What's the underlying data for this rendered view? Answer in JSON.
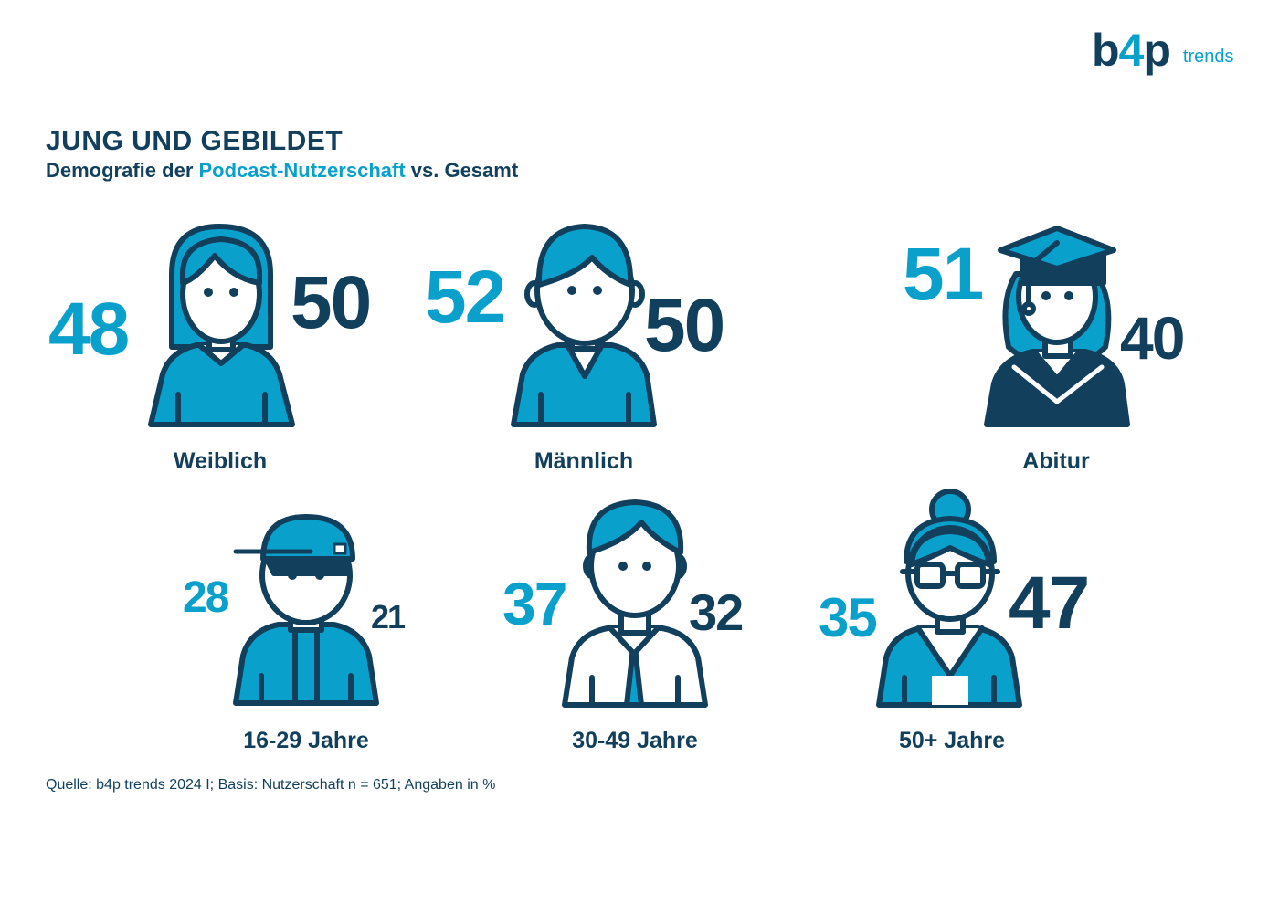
{
  "logo": {
    "brand_b": "b",
    "brand_4": "4",
    "brand_p": "p",
    "sub": "trends"
  },
  "title": "JUNG UND GEBILDET",
  "subtitle": {
    "part1": "Demografie der ",
    "accent": "Podcast-Nutzerschaft",
    "part2": " vs. Gesamt"
  },
  "source": "Quelle: b4p trends 2024 I; Basis: Nutzerschaft n = 651; Angaben in %",
  "colors": {
    "podcast": "#0aa0cc",
    "total": "#113f5c",
    "icon_fill": "#0aa0cc",
    "icon_stroke": "#113f5c"
  },
  "chart_data": {
    "type": "pictogram",
    "series": [
      {
        "name": "Podcast-Nutzerschaft",
        "values": [
          48,
          52,
          51,
          28,
          37,
          35
        ]
      },
      {
        "name": "Gesamt",
        "values": [
          50,
          50,
          40,
          21,
          32,
          47
        ]
      }
    ],
    "categories": [
      "Weiblich",
      "Männlich",
      "Abitur",
      "16-29 Jahre",
      "30-49 Jahre",
      "50+ Jahre"
    ],
    "icons": [
      "woman-icon",
      "man-icon",
      "graduate-icon",
      "teen-cap-icon",
      "man-shirt-tie-icon",
      "older-woman-glasses-icon"
    ],
    "unit": "%"
  }
}
